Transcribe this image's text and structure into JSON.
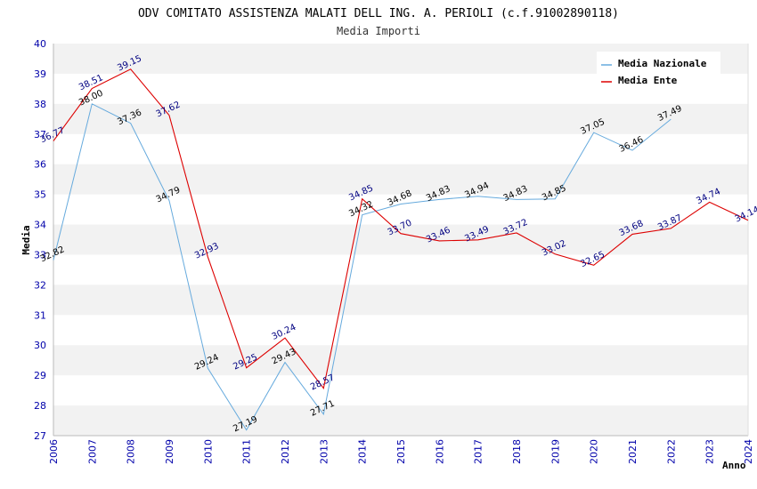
{
  "chart_data": {
    "type": "line",
    "title": "ODV COMITATO ASSISTENZA MALATI DELL ING. A. PERIOLI (c.f.91002890118)",
    "subtitle": "Media Importi",
    "xlabel": "Anno",
    "ylabel": "Media",
    "ylim": [
      27,
      40
    ],
    "y_ticks": [
      "27",
      "28",
      "29",
      "30",
      "31",
      "32",
      "33",
      "34",
      "35",
      "36",
      "37",
      "38",
      "39",
      "40"
    ],
    "categories": [
      "2006",
      "2007",
      "2008",
      "2009",
      "2010",
      "2011",
      "2012",
      "2013",
      "2014",
      "2015",
      "2016",
      "2017",
      "2018",
      "2019",
      "2020",
      "2021",
      "2022",
      "2023",
      "2024"
    ],
    "grid": "horizontal bands",
    "legend_position": "top-right",
    "colors": {
      "Media Nazionale": "#66aadd",
      "Media Ente": "#dd0000",
      "band": "#f2f2f2",
      "tick": "#0000aa"
    },
    "series": [
      {
        "name": "Media Nazionale",
        "values": [
          32.82,
          38.0,
          37.36,
          34.79,
          29.24,
          27.19,
          29.43,
          27.71,
          34.32,
          34.68,
          34.83,
          34.94,
          34.83,
          34.85,
          37.05,
          36.46,
          37.49,
          null,
          null
        ],
        "labels": [
          "32.82",
          "38.00",
          "37.36",
          "34.79",
          "29.24",
          "27.19",
          "29.43",
          "27.71",
          "34.32",
          "34.68",
          "34.83",
          "34.94",
          "34.83",
          "34.85",
          "37.05",
          "36.46",
          "37.49",
          "",
          ""
        ]
      },
      {
        "name": "Media Ente",
        "values": [
          36.77,
          38.51,
          39.15,
          37.62,
          32.93,
          29.25,
          30.24,
          28.57,
          34.85,
          33.7,
          33.46,
          33.49,
          33.72,
          33.02,
          32.65,
          33.68,
          33.87,
          34.74,
          34.14
        ],
        "labels": [
          "36.77",
          "38.51",
          "39.15",
          "37.62",
          "32.93",
          "29.25",
          "30.24",
          "28.57",
          "34.85",
          "33.70",
          "33.46",
          "33.49",
          "33.72",
          "33.02",
          "32.65",
          "33.68",
          "33.87",
          "34.74",
          "34.14"
        ]
      }
    ]
  }
}
